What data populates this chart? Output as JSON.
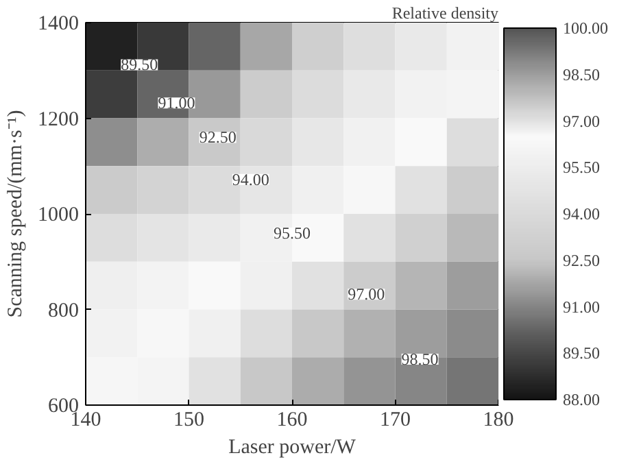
{
  "chart_data": {
    "type": "heatmap",
    "xlabel": "Laser power/W",
    "ylabel": "Scanning speed/(mm·s⁻¹)",
    "clabel": "Relative density",
    "xlim": [
      140,
      180
    ],
    "ylim": [
      600,
      1400
    ],
    "xticks": [
      140,
      150,
      160,
      170,
      180
    ],
    "yticks": [
      600,
      800,
      1000,
      1200,
      1400
    ],
    "clim": [
      88,
      100
    ],
    "cticks": [
      {
        "value": 88,
        "label": "88.00"
      },
      {
        "value": 89.5,
        "label": "89.50"
      },
      {
        "value": 91,
        "label": "91.00"
      },
      {
        "value": 92.5,
        "label": "92.50"
      },
      {
        "value": 94,
        "label": "94.00"
      },
      {
        "value": 95.5,
        "label": "95.50"
      },
      {
        "value": 97,
        "label": "97.00"
      },
      {
        "value": 98.5,
        "label": "98.50"
      },
      {
        "value": 100,
        "label": "100.00"
      }
    ],
    "cells": [
      [
        88.4,
        89.1,
        90.25,
        91.75,
        93.1,
        94.3,
        95.2,
        95.9
      ],
      [
        89.2,
        90.25,
        91.45,
        92.9,
        94.1,
        95.2,
        95.9,
        96.6
      ],
      [
        91.2,
        91.9,
        92.6,
        93.9,
        95.0,
        95.8,
        96.4,
        97.1
      ],
      [
        92.8,
        93.4,
        94.1,
        94.9,
        95.7,
        96.3,
        97.0,
        97.5
      ],
      [
        94.25,
        94.75,
        95.25,
        95.8,
        96.4,
        97.0,
        97.4,
        97.9
      ],
      [
        95.6,
        96.0,
        96.4,
        96.7,
        97.0,
        97.5,
        98.0,
        98.5
      ],
      [
        95.9,
        96.3,
        96.7,
        97.1,
        97.6,
        98.1,
        98.5,
        98.9
      ],
      [
        96.2,
        96.6,
        97.0,
        97.6,
        98.2,
        98.7,
        99.0,
        99.3
      ]
    ],
    "annotations": [
      "89.50",
      "91.00",
      "92.50",
      "94.00",
      "95.50",
      "97.00",
      "98.50"
    ]
  }
}
